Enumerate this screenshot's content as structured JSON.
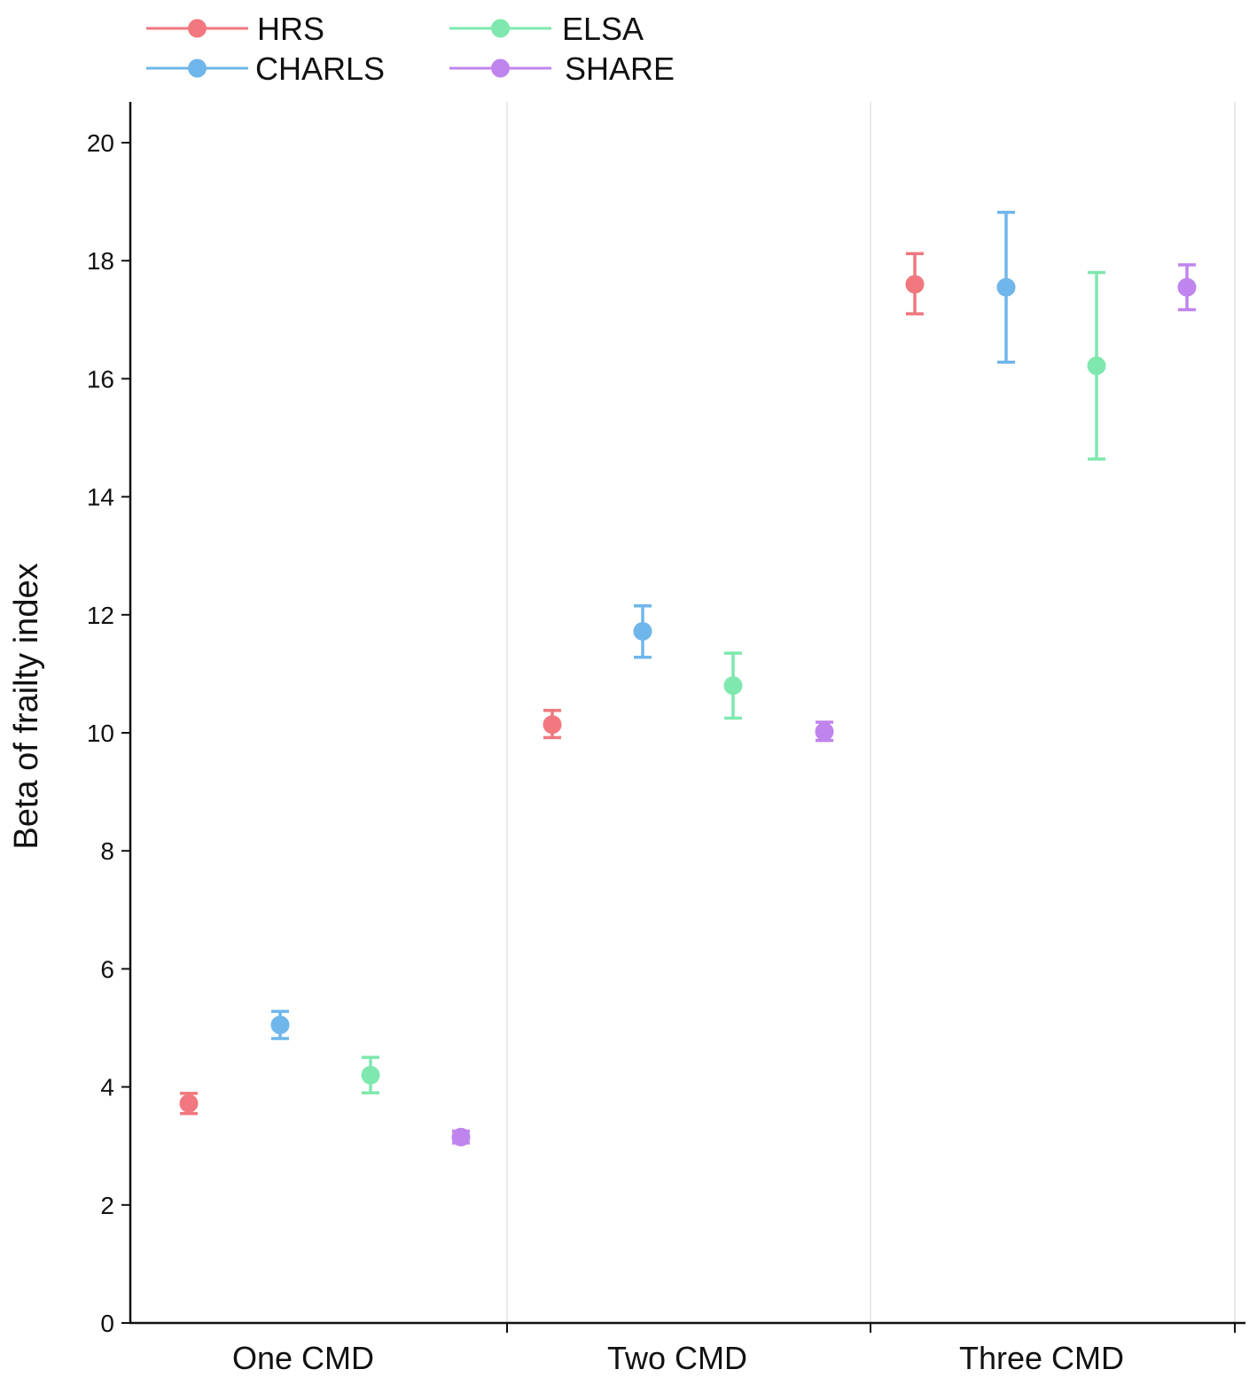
{
  "chart_data": {
    "type": "scatter",
    "subtype": "point-with-error-bars",
    "title": "",
    "xlabel": "",
    "ylabel": "Beta of frailty index",
    "ylim": [
      0,
      20
    ],
    "yticks": [
      0,
      2,
      4,
      6,
      8,
      10,
      12,
      14,
      16,
      18,
      20
    ],
    "categories": [
      "One CMD",
      "Two CMD",
      "Three CMD"
    ],
    "legend_position": "top-left",
    "grid": "vertical separators between categories",
    "series": [
      {
        "name": "HRS",
        "color": "#F0787E",
        "points": [
          {
            "category": "One CMD",
            "value": 3.72,
            "lower": 3.55,
            "upper": 3.89
          },
          {
            "category": "Two CMD",
            "value": 10.14,
            "lower": 9.92,
            "upper": 10.38
          },
          {
            "category": "Three CMD",
            "value": 17.6,
            "lower": 17.1,
            "upper": 18.12
          }
        ]
      },
      {
        "name": "CHARLS",
        "color": "#6FB6EA",
        "points": [
          {
            "category": "One CMD",
            "value": 5.05,
            "lower": 4.82,
            "upper": 5.28
          },
          {
            "category": "Two CMD",
            "value": 11.72,
            "lower": 11.28,
            "upper": 12.15
          },
          {
            "category": "Three CMD",
            "value": 17.55,
            "lower": 16.28,
            "upper": 18.82
          }
        ]
      },
      {
        "name": "ELSA",
        "color": "#7EE8AE",
        "points": [
          {
            "category": "One CMD",
            "value": 4.2,
            "lower": 3.9,
            "upper": 4.5
          },
          {
            "category": "Two CMD",
            "value": 10.8,
            "lower": 10.25,
            "upper": 11.35
          },
          {
            "category": "Three CMD",
            "value": 16.22,
            "lower": 14.64,
            "upper": 17.8
          }
        ]
      },
      {
        "name": "SHARE",
        "color": "#C084EE",
        "points": [
          {
            "category": "One CMD",
            "value": 3.15,
            "lower": 3.05,
            "upper": 3.25
          },
          {
            "category": "Two CMD",
            "value": 10.02,
            "lower": 9.87,
            "upper": 10.18
          },
          {
            "category": "Three CMD",
            "value": 17.55,
            "lower": 17.17,
            "upper": 17.93
          }
        ]
      }
    ]
  }
}
